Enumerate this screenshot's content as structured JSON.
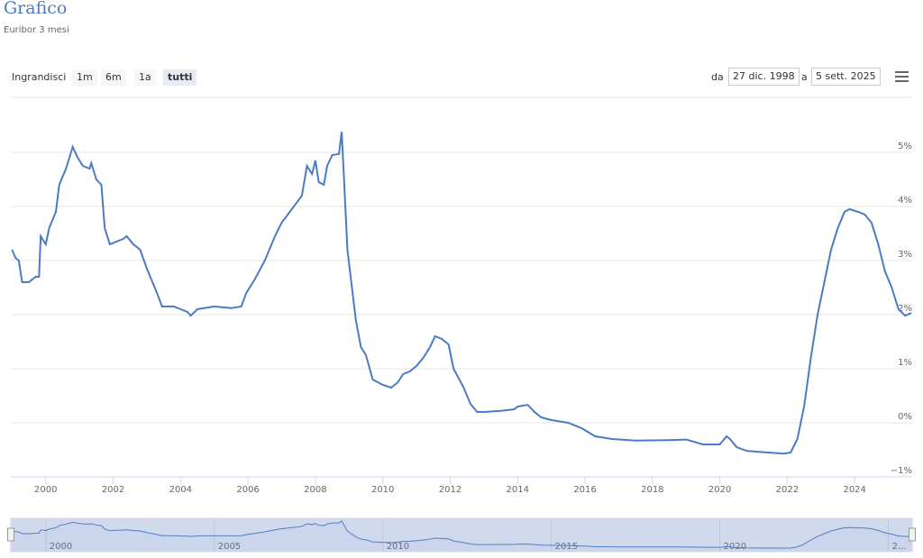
{
  "header": {
    "title": "Grafico",
    "subtitle": "Euribor 3 mesi"
  },
  "range_selector": {
    "label": "Ingrandisci",
    "buttons": [
      "1m",
      "6m",
      "1a",
      "tutti"
    ],
    "selected": 3
  },
  "date_range": {
    "from_label": "da",
    "from": "27 dic. 1998",
    "to_label": "a",
    "to": "5 sett. 2025"
  },
  "chart_data": {
    "type": "line",
    "x": [
      1999.0,
      1999.1,
      1999.2,
      1999.3,
      1999.5,
      1999.7,
      1999.8,
      1999.85,
      2000.0,
      2000.1,
      2000.3,
      2000.4,
      2000.6,
      2000.7,
      2000.8,
      2000.95,
      2001.1,
      2001.3,
      2001.35,
      2001.5,
      2001.65,
      2001.75,
      2001.9,
      2002.1,
      2002.3,
      2002.4,
      2002.6,
      2002.8,
      2003.0,
      2003.2,
      2003.3,
      2003.45,
      2003.8,
      2004.0,
      2004.2,
      2004.3,
      2004.5,
      2005.0,
      2005.5,
      2005.8,
      2005.95,
      2006.2,
      2006.5,
      2006.8,
      2007.0,
      2007.3,
      2007.6,
      2007.75,
      2007.9,
      2008.0,
      2008.1,
      2008.25,
      2008.35,
      2008.5,
      2008.7,
      2008.78,
      2008.85,
      2008.95,
      2009.2,
      2009.35,
      2009.5,
      2009.7,
      2010.0,
      2010.25,
      2010.45,
      2010.6,
      2010.8,
      2011.0,
      2011.2,
      2011.4,
      2011.55,
      2011.75,
      2011.95,
      2012.1,
      2012.4,
      2012.6,
      2012.8,
      2013.0,
      2013.5,
      2013.9,
      2014.0,
      2014.3,
      2014.5,
      2014.7,
      2015.0,
      2015.5,
      2015.9,
      2016.3,
      2016.8,
      2017.5,
      2018.5,
      2019.0,
      2019.5,
      2020.0,
      2020.2,
      2020.3,
      2020.5,
      2020.8,
      2021.2,
      2021.9,
      2022.1,
      2022.3,
      2022.5,
      2022.7,
      2022.9,
      2023.1,
      2023.3,
      2023.5,
      2023.7,
      2023.85,
      2024.1,
      2024.3,
      2024.5,
      2024.7,
      2024.9,
      2025.1,
      2025.3,
      2025.5,
      2025.68
    ],
    "series": [
      {
        "name": "Euribor 3 mesi",
        "color": "#4a7bc4",
        "values": [
          3.2,
          3.05,
          3.0,
          2.6,
          2.6,
          2.7,
          2.7,
          3.45,
          3.3,
          3.6,
          3.9,
          4.4,
          4.7,
          4.9,
          5.1,
          4.9,
          4.75,
          4.7,
          4.8,
          4.5,
          4.4,
          3.6,
          3.3,
          3.35,
          3.4,
          3.45,
          3.3,
          3.2,
          2.85,
          2.55,
          2.4,
          2.15,
          2.15,
          2.1,
          2.05,
          1.98,
          2.1,
          2.15,
          2.12,
          2.15,
          2.4,
          2.65,
          3.0,
          3.45,
          3.7,
          3.95,
          4.2,
          4.75,
          4.6,
          4.85,
          4.45,
          4.4,
          4.75,
          4.95,
          4.97,
          5.38,
          4.5,
          3.2,
          1.9,
          1.4,
          1.25,
          0.8,
          0.7,
          0.65,
          0.75,
          0.9,
          0.95,
          1.05,
          1.2,
          1.4,
          1.6,
          1.55,
          1.45,
          1.0,
          0.65,
          0.35,
          0.2,
          0.2,
          0.22,
          0.25,
          0.3,
          0.33,
          0.2,
          0.1,
          0.05,
          0.0,
          -0.1,
          -0.25,
          -0.3,
          -0.33,
          -0.32,
          -0.31,
          -0.4,
          -0.4,
          -0.25,
          -0.3,
          -0.45,
          -0.52,
          -0.54,
          -0.57,
          -0.55,
          -0.3,
          0.3,
          1.2,
          2.0,
          2.6,
          3.2,
          3.6,
          3.9,
          3.95,
          3.9,
          3.85,
          3.7,
          3.3,
          2.8,
          2.5,
          2.1,
          1.98,
          2.03
        ]
      }
    ],
    "xlim": [
      1998.99,
      2025.68
    ],
    "xticks": [
      2000,
      2002,
      2004,
      2006,
      2008,
      2010,
      2012,
      2014,
      2016,
      2018,
      2020,
      2022,
      2024
    ],
    "ylim": [
      -1,
      6
    ],
    "yticks": [
      {
        "value": -1,
        "label": "−1%"
      },
      {
        "value": 0,
        "label": "0%"
      },
      {
        "value": 1,
        "label": "1%"
      },
      {
        "value": 2,
        "label": "2%"
      },
      {
        "value": 3,
        "label": "3%"
      },
      {
        "value": 4,
        "label": "4%"
      },
      {
        "value": 5,
        "label": "5%"
      }
    ],
    "grid": true,
    "navigator_xticks": [
      2000,
      2005,
      2010,
      2015,
      2020,
      {
        "value": 2025,
        "label": "2…"
      }
    ]
  }
}
